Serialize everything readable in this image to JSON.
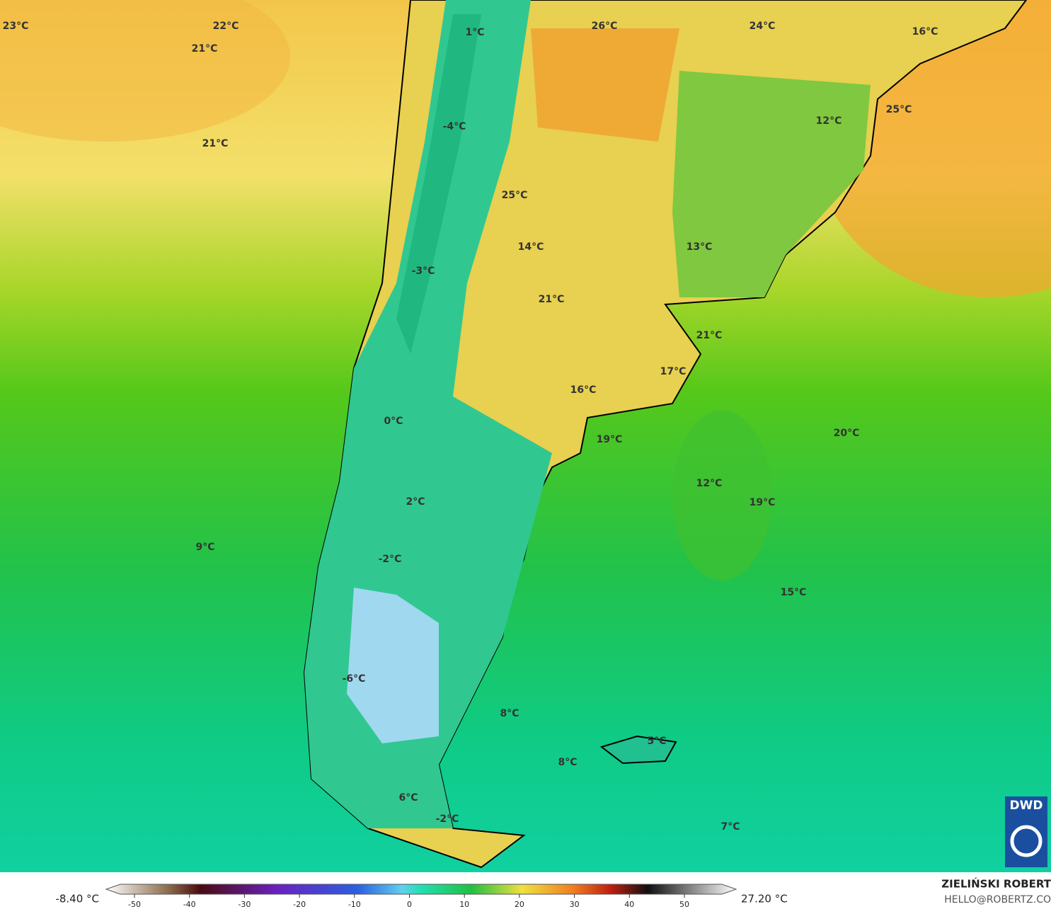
{
  "map": {
    "labels": [
      "23°C",
      "22°C",
      "21°C",
      "21°C",
      "1°C",
      "-4°C",
      "26°C",
      "24°C",
      "16°C",
      "12°C",
      "25°C",
      "25°C",
      "14°C",
      "13°C",
      "-3°C",
      "21°C",
      "21°C",
      "17°C",
      "16°C",
      "0°C",
      "19°C",
      "20°C",
      "12°C",
      "2°C",
      "19°C",
      "9°C",
      "-2°C",
      "15°C",
      "-6°C",
      "8°C",
      "5°C",
      "8°C",
      "6°C",
      "-2°C",
      "7°C"
    ]
  },
  "logo": "DWD",
  "colorbar": {
    "min_label": "-8.40 °C",
    "max_label": "27.20 °C",
    "ticks": [
      -50,
      -40,
      -30,
      -20,
      -10,
      0,
      10,
      20,
      30,
      40,
      50
    ]
  },
  "credit": {
    "name": "ZIELIŃSKI ROBERT",
    "email": "HELLO@ROBERTZ.CO"
  }
}
